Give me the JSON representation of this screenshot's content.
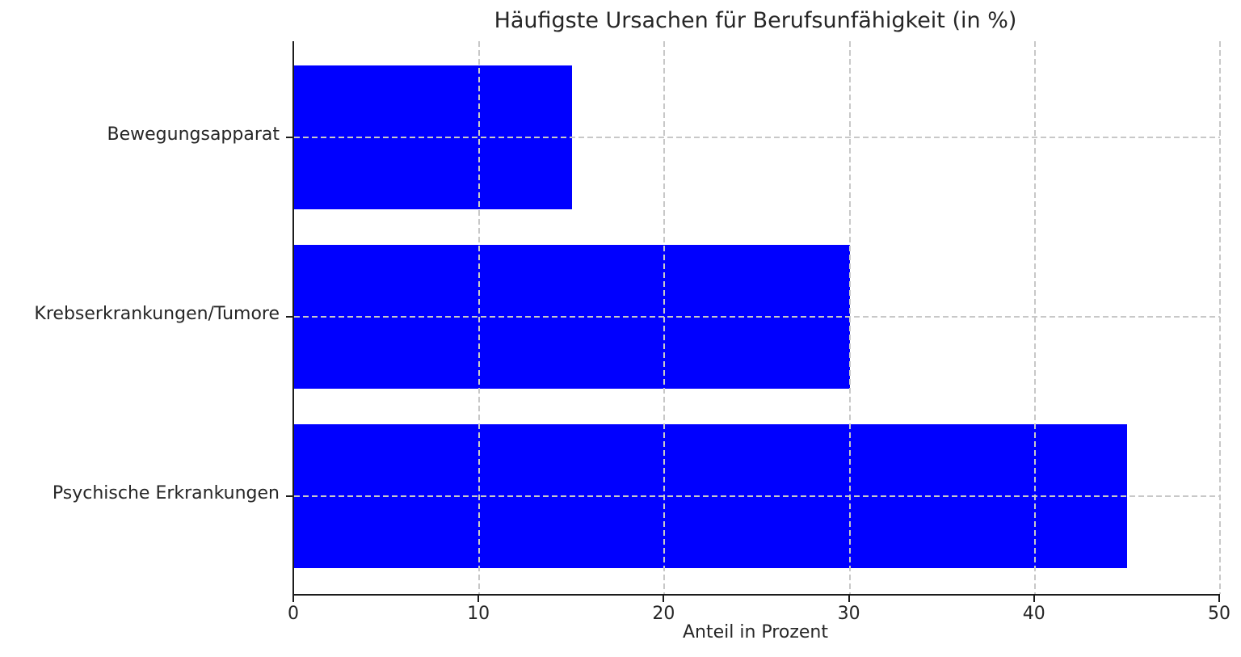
{
  "chart_data": {
    "type": "bar",
    "orientation": "horizontal",
    "title": "Häufigste Ursachen für Berufsunfähigkeit (in %)",
    "categories": [
      "Bewegungsapparat",
      "Krebserkrankungen/Tumore",
      "Psychische Erkrankungen"
    ],
    "values": [
      15,
      30,
      45
    ],
    "xlabel": "Anteil in Prozent",
    "ylabel": "",
    "xlim": [
      0,
      50
    ],
    "xticks": [
      0,
      10,
      20,
      30,
      40,
      50
    ],
    "bar_color": "#0000ff",
    "grid": true,
    "grid_style": "dashed",
    "grid_color": "#c8c8c8",
    "legend": false
  }
}
